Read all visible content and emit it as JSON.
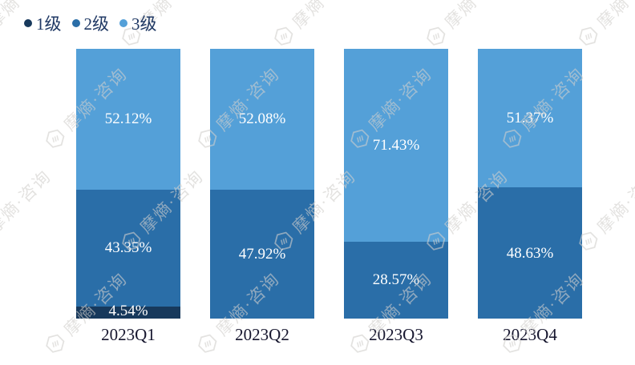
{
  "chart_data": {
    "type": "bar",
    "stacked": true,
    "unit": "%",
    "title": "",
    "xlabel": "",
    "ylabel": "",
    "ylim": [
      0,
      100
    ],
    "grid": false,
    "legend_position": "top-left",
    "label_color": "#ffffff",
    "categories": [
      "2023Q1",
      "2023Q2",
      "2023Q3",
      "2023Q4"
    ],
    "series": [
      {
        "name": "1级",
        "color": "#17395c",
        "values": [
          4.54,
          0,
          0,
          0
        ],
        "labels": [
          "4.54%",
          "",
          "",
          ""
        ]
      },
      {
        "name": "2级",
        "color": "#2a6ea8",
        "values": [
          43.35,
          47.92,
          28.57,
          48.63
        ],
        "labels": [
          "43.35%",
          "47.92%",
          "28.57%",
          "48.63%"
        ]
      },
      {
        "name": "3级",
        "color": "#54a0d8",
        "values": [
          52.12,
          52.08,
          71.43,
          51.37
        ],
        "labels": [
          "52.12%",
          "52.08%",
          "71.43%",
          "51.37%"
        ]
      }
    ]
  },
  "watermark": {
    "text": "摩熵·咨询",
    "color": "#d2d0cd"
  }
}
